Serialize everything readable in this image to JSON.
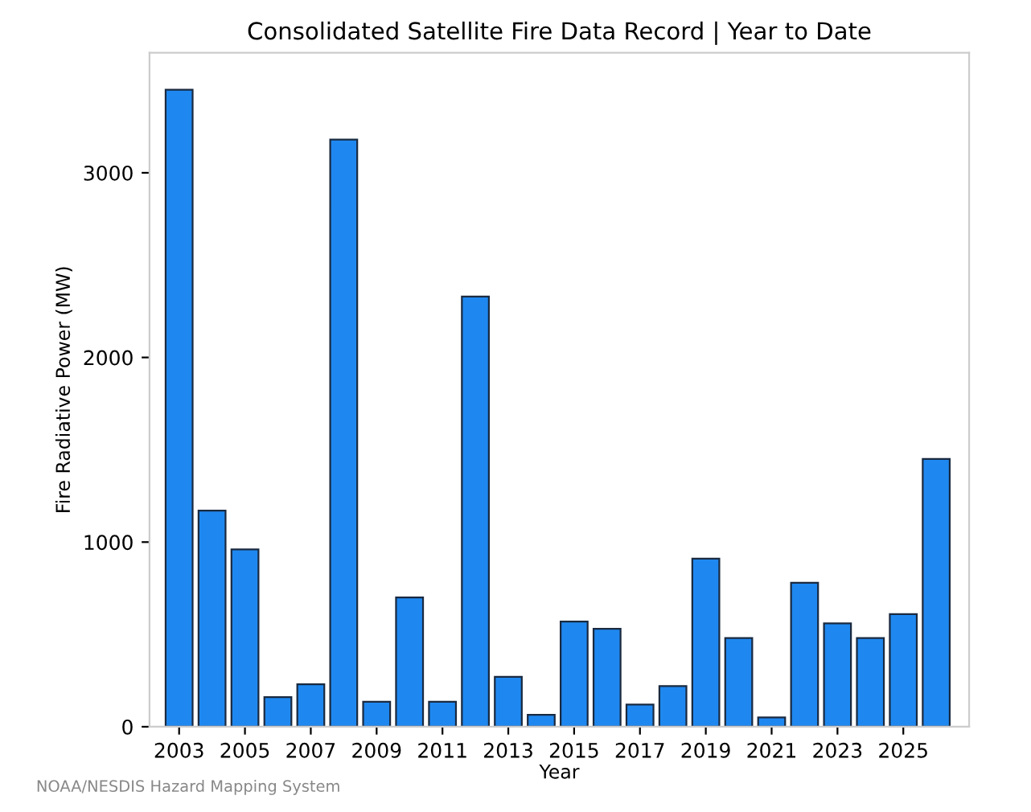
{
  "chart_data": {
    "type": "bar",
    "title": "Consolidated Satellite Fire Data Record | Year to Date",
    "xlabel": "Year",
    "ylabel": "Fire Radiative Power (MW)",
    "x": [
      2003,
      2004,
      2005,
      2006,
      2007,
      2008,
      2009,
      2010,
      2011,
      2012,
      2013,
      2014,
      2015,
      2016,
      2017,
      2018,
      2019,
      2020,
      2021,
      2022,
      2023,
      2024,
      2025,
      2026
    ],
    "values": [
      3450,
      1170,
      960,
      160,
      230,
      3180,
      135,
      700,
      135,
      2330,
      270,
      65,
      570,
      530,
      120,
      220,
      910,
      480,
      50,
      780,
      560,
      480,
      610,
      1450
    ],
    "color": "#1f88f0",
    "xlim": [
      2002.1,
      2027
    ],
    "xticks": [
      2003,
      2005,
      2007,
      2009,
      2011,
      2013,
      2015,
      2017,
      2019,
      2021,
      2023,
      2025
    ],
    "ylim": [
      0,
      3650
    ],
    "yticks": [
      0,
      1000,
      2000,
      3000
    ],
    "grid": false,
    "annotations": [
      "NOAA/NESDIS Hazard Mapping System"
    ]
  }
}
